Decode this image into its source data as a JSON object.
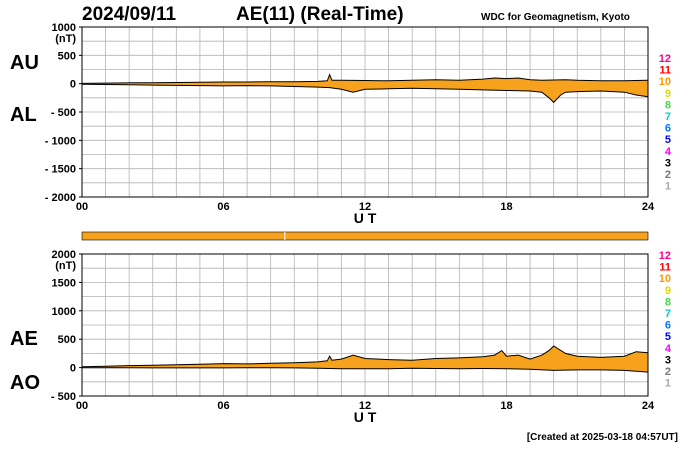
{
  "header": {
    "date": "2024/09/11",
    "title": "AE(11) (Real-Time)",
    "source": "WDC for Geomagnetism, Kyoto"
  },
  "footer": {
    "created": "[Created at 2025-03-18 04:57UT]"
  },
  "colors": {
    "fill": "#F7A21C",
    "line": "#000000",
    "grid": "#b4b4b4",
    "stations": [
      "#aaaaaa",
      "#777777",
      "#000000",
      "#ff00ff",
      "#0000ff",
      "#0077ff",
      "#00cccc",
      "#44dd44",
      "#dddd00",
      "#ff9900",
      "#ff0000",
      "#ff0088"
    ]
  },
  "station_numbers": [
    "1",
    "2",
    "3",
    "4",
    "5",
    "6",
    "7",
    "8",
    "9",
    "10",
    "11",
    "12"
  ],
  "chart_data": [
    {
      "id": "au-al",
      "type": "area",
      "labels": [
        "AU",
        "AL"
      ],
      "units": "(nT)",
      "xlabel": "U T",
      "xlim": [
        0,
        24
      ],
      "ylim": [
        -2000,
        1000
      ],
      "xticks": [
        "00",
        "06",
        "12",
        "18",
        "24"
      ],
      "yticks": [
        {
          "v": 1000,
          "t": "1000"
        },
        {
          "v": 500,
          "t": "500"
        },
        {
          "v": 0,
          "t": "0"
        },
        {
          "v": -500,
          "t": "- 500"
        },
        {
          "v": -1000,
          "t": "- 1000"
        },
        {
          "v": -1500,
          "t": "- 1500"
        },
        {
          "v": -2000,
          "t": "- 2000"
        }
      ],
      "grid": true,
      "series": [
        {
          "key": "AU",
          "x": [
            0,
            1,
            2,
            3,
            4,
            5,
            6,
            7,
            8,
            9,
            10,
            10.4,
            10.5,
            10.6,
            11,
            12,
            13,
            14,
            15,
            16,
            17,
            17.5,
            18,
            18.5,
            19,
            19.5,
            20,
            20.5,
            21,
            22,
            23,
            23.5,
            24
          ],
          "values": [
            5,
            10,
            15,
            15,
            20,
            25,
            30,
            30,
            35,
            35,
            40,
            50,
            160,
            60,
            60,
            55,
            50,
            60,
            70,
            60,
            80,
            100,
            90,
            100,
            70,
            60,
            65,
            70,
            60,
            50,
            50,
            55,
            60
          ]
        },
        {
          "key": "AL",
          "x": [
            0,
            1,
            2,
            3,
            4,
            5,
            6,
            7,
            8,
            9,
            10,
            10.5,
            11,
            11.5,
            12,
            13,
            14,
            15,
            16,
            17,
            18,
            19,
            19.5,
            19.8,
            20,
            20.3,
            20.5,
            21,
            22,
            23,
            23.5,
            24
          ],
          "values": [
            -10,
            -15,
            -20,
            -25,
            -30,
            -35,
            -40,
            -35,
            -40,
            -50,
            -60,
            -70,
            -100,
            -150,
            -100,
            -90,
            -80,
            -90,
            -100,
            -110,
            -120,
            -130,
            -150,
            -250,
            -330,
            -200,
            -150,
            -140,
            -130,
            -150,
            -200,
            -230
          ]
        }
      ]
    },
    {
      "id": "ae-ao",
      "type": "area",
      "labels": [
        "AE",
        "AO"
      ],
      "units": "(nT)",
      "xlabel": "U T",
      "xlim": [
        0,
        24
      ],
      "ylim": [
        -500,
        2000
      ],
      "xticks": [
        "00",
        "06",
        "12",
        "18",
        "24"
      ],
      "yticks": [
        {
          "v": 2000,
          "t": "2000"
        },
        {
          "v": 1500,
          "t": "1500"
        },
        {
          "v": 1000,
          "t": "1000"
        },
        {
          "v": 500,
          "t": "500"
        },
        {
          "v": 0,
          "t": "0"
        },
        {
          "v": -500,
          "t": "- 500"
        }
      ],
      "grid": true,
      "series": [
        {
          "key": "AE",
          "x": [
            0,
            1,
            2,
            3,
            4,
            5,
            6,
            7,
            8,
            9,
            10,
            10.4,
            10.5,
            10.6,
            11,
            11.5,
            12,
            13,
            14,
            15,
            16,
            17,
            17.5,
            17.8,
            18,
            18.5,
            19,
            19.5,
            19.8,
            20,
            20.5,
            21,
            22,
            23,
            23.5,
            24
          ],
          "values": [
            15,
            25,
            35,
            40,
            50,
            60,
            70,
            65,
            75,
            85,
            100,
            120,
            200,
            130,
            150,
            220,
            160,
            140,
            130,
            160,
            170,
            190,
            220,
            300,
            200,
            220,
            150,
            220,
            300,
            380,
            250,
            200,
            180,
            200,
            280,
            260
          ]
        },
        {
          "key": "AO",
          "x": [
            0,
            1,
            2,
            3,
            4,
            5,
            6,
            7,
            8,
            9,
            10,
            11,
            12,
            13,
            14,
            15,
            16,
            17,
            18,
            19,
            20,
            21,
            22,
            23,
            24
          ],
          "values": [
            -2,
            -3,
            -2,
            -5,
            -5,
            -5,
            -5,
            -3,
            -3,
            -5,
            -10,
            -20,
            -20,
            -20,
            -10,
            -15,
            -20,
            -15,
            -20,
            -30,
            -50,
            -40,
            -40,
            -50,
            -80
          ]
        }
      ]
    }
  ],
  "status_bar": {
    "color": "#F7A21C",
    "marker_at_ut": 8.6
  }
}
